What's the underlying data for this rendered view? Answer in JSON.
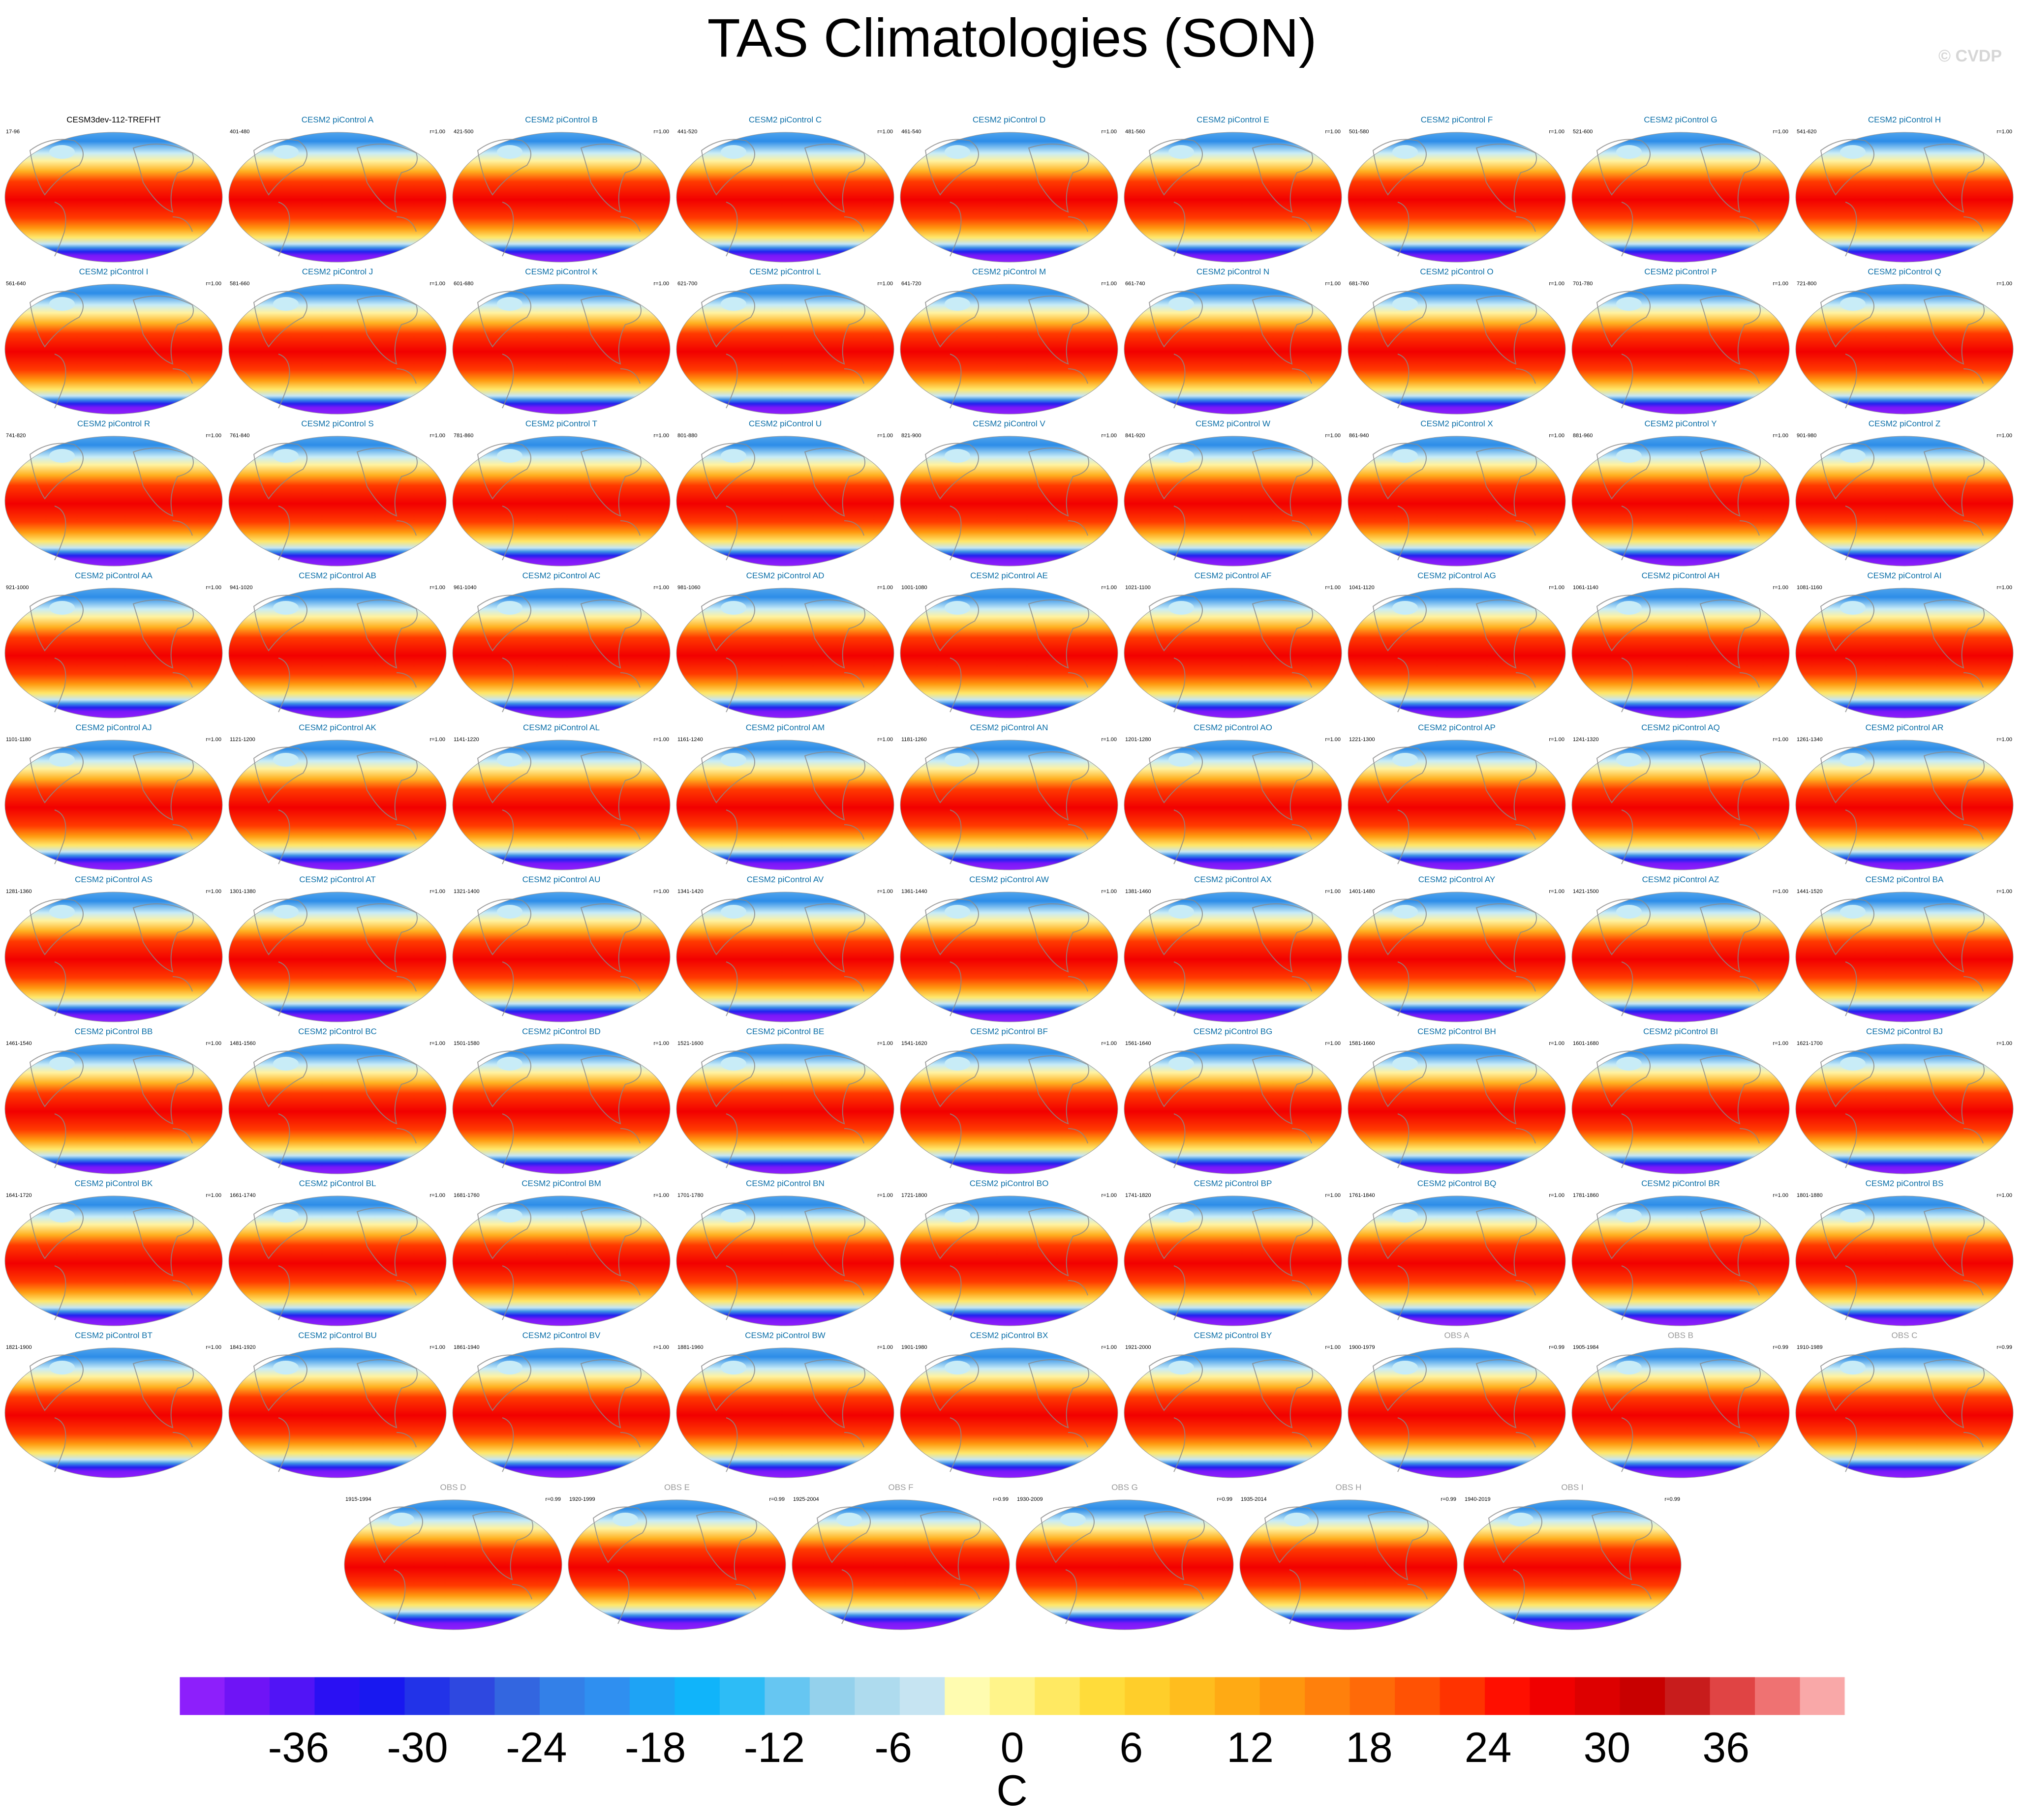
{
  "header": {
    "title": "TAS Climatologies (SON)",
    "copyright": "© CVDP"
  },
  "chart_data": {
    "type": "heatmap",
    "title": "TAS Climatologies (SON)",
    "variable": "TAS (surface air temperature), SON season",
    "units": "C",
    "projection": "global map (Robinson-like), repeated small multiples",
    "panels": [
      {
        "name": "CESM3dev-112-TREFHT",
        "years": "17-96",
        "r": ""
      },
      {
        "name": "CESM2 piControl A",
        "years": "401-480",
        "r": "r=1.00"
      },
      {
        "name": "CESM2 piControl B",
        "years": "421-500",
        "r": "r=1.00"
      },
      {
        "name": "CESM2 piControl C",
        "years": "441-520",
        "r": "r=1.00"
      },
      {
        "name": "CESM2 piControl D",
        "years": "461-540",
        "r": "r=1.00"
      },
      {
        "name": "CESM2 piControl E",
        "years": "481-560",
        "r": "r=1.00"
      },
      {
        "name": "CESM2 piControl F",
        "years": "501-580",
        "r": "r=1.00"
      },
      {
        "name": "CESM2 piControl G",
        "years": "521-600",
        "r": "r=1.00"
      },
      {
        "name": "CESM2 piControl H",
        "years": "541-620",
        "r": "r=1.00"
      },
      {
        "name": "CESM2 piControl I",
        "years": "561-640",
        "r": "r=1.00"
      },
      {
        "name": "CESM2 piControl J",
        "years": "581-660",
        "r": "r=1.00"
      },
      {
        "name": "CESM2 piControl K",
        "years": "601-680",
        "r": "r=1.00"
      },
      {
        "name": "CESM2 piControl L",
        "years": "621-700",
        "r": "r=1.00"
      },
      {
        "name": "CESM2 piControl M",
        "years": "641-720",
        "r": "r=1.00"
      },
      {
        "name": "CESM2 piControl N",
        "years": "661-740",
        "r": "r=1.00"
      },
      {
        "name": "CESM2 piControl O",
        "years": "681-760",
        "r": "r=1.00"
      },
      {
        "name": "CESM2 piControl P",
        "years": "701-780",
        "r": "r=1.00"
      },
      {
        "name": "CESM2 piControl Q",
        "years": "721-800",
        "r": "r=1.00"
      },
      {
        "name": "CESM2 piControl R",
        "years": "741-820",
        "r": "r=1.00"
      },
      {
        "name": "CESM2 piControl S",
        "years": "761-840",
        "r": "r=1.00"
      },
      {
        "name": "CESM2 piControl T",
        "years": "781-860",
        "r": "r=1.00"
      },
      {
        "name": "CESM2 piControl U",
        "years": "801-880",
        "r": "r=1.00"
      },
      {
        "name": "CESM2 piControl V",
        "years": "821-900",
        "r": "r=1.00"
      },
      {
        "name": "CESM2 piControl W",
        "years": "841-920",
        "r": "r=1.00"
      },
      {
        "name": "CESM2 piControl X",
        "years": "861-940",
        "r": "r=1.00"
      },
      {
        "name": "CESM2 piControl Y",
        "years": "881-960",
        "r": "r=1.00"
      },
      {
        "name": "CESM2 piControl Z",
        "years": "901-980",
        "r": "r=1.00"
      },
      {
        "name": "CESM2 piControl AA",
        "years": "921-1000",
        "r": "r=1.00"
      },
      {
        "name": "CESM2 piControl AB",
        "years": "941-1020",
        "r": "r=1.00"
      },
      {
        "name": "CESM2 piControl AC",
        "years": "961-1040",
        "r": "r=1.00"
      },
      {
        "name": "CESM2 piControl AD",
        "years": "981-1060",
        "r": "r=1.00"
      },
      {
        "name": "CESM2 piControl AE",
        "years": "1001-1080",
        "r": "r=1.00"
      },
      {
        "name": "CESM2 piControl AF",
        "years": "1021-1100",
        "r": "r=1.00"
      },
      {
        "name": "CESM2 piControl AG",
        "years": "1041-1120",
        "r": "r=1.00"
      },
      {
        "name": "CESM2 piControl AH",
        "years": "1061-1140",
        "r": "r=1.00"
      },
      {
        "name": "CESM2 piControl AI",
        "years": "1081-1160",
        "r": "r=1.00"
      },
      {
        "name": "CESM2 piControl AJ",
        "years": "1101-1180",
        "r": "r=1.00"
      },
      {
        "name": "CESM2 piControl AK",
        "years": "1121-1200",
        "r": "r=1.00"
      },
      {
        "name": "CESM2 piControl AL",
        "years": "1141-1220",
        "r": "r=1.00"
      },
      {
        "name": "CESM2 piControl AM",
        "years": "1161-1240",
        "r": "r=1.00"
      },
      {
        "name": "CESM2 piControl AN",
        "years": "1181-1260",
        "r": "r=1.00"
      },
      {
        "name": "CESM2 piControl AO",
        "years": "1201-1280",
        "r": "r=1.00"
      },
      {
        "name": "CESM2 piControl AP",
        "years": "1221-1300",
        "r": "r=1.00"
      },
      {
        "name": "CESM2 piControl AQ",
        "years": "1241-1320",
        "r": "r=1.00"
      },
      {
        "name": "CESM2 piControl AR",
        "years": "1261-1340",
        "r": "r=1.00"
      },
      {
        "name": "CESM2 piControl AS",
        "years": "1281-1360",
        "r": "r=1.00"
      },
      {
        "name": "CESM2 piControl AT",
        "years": "1301-1380",
        "r": "r=1.00"
      },
      {
        "name": "CESM2 piControl AU",
        "years": "1321-1400",
        "r": "r=1.00"
      },
      {
        "name": "CESM2 piControl AV",
        "years": "1341-1420",
        "r": "r=1.00"
      },
      {
        "name": "CESM2 piControl AW",
        "years": "1361-1440",
        "r": "r=1.00"
      },
      {
        "name": "CESM2 piControl AX",
        "years": "1381-1460",
        "r": "r=1.00"
      },
      {
        "name": "CESM2 piControl AY",
        "years": "1401-1480",
        "r": "r=1.00"
      },
      {
        "name": "CESM2 piControl AZ",
        "years": "1421-1500",
        "r": "r=1.00"
      },
      {
        "name": "CESM2 piControl BA",
        "years": "1441-1520",
        "r": "r=1.00"
      },
      {
        "name": "CESM2 piControl BB",
        "years": "1461-1540",
        "r": "r=1.00"
      },
      {
        "name": "CESM2 piControl BC",
        "years": "1481-1560",
        "r": "r=1.00"
      },
      {
        "name": "CESM2 piControl BD",
        "years": "1501-1580",
        "r": "r=1.00"
      },
      {
        "name": "CESM2 piControl BE",
        "years": "1521-1600",
        "r": "r=1.00"
      },
      {
        "name": "CESM2 piControl BF",
        "years": "1541-1620",
        "r": "r=1.00"
      },
      {
        "name": "CESM2 piControl BG",
        "years": "1561-1640",
        "r": "r=1.00"
      },
      {
        "name": "CESM2 piControl BH",
        "years": "1581-1660",
        "r": "r=1.00"
      },
      {
        "name": "CESM2 piControl BI",
        "years": "1601-1680",
        "r": "r=1.00"
      },
      {
        "name": "CESM2 piControl BJ",
        "years": "1621-1700",
        "r": "r=1.00"
      },
      {
        "name": "CESM2 piControl BK",
        "years": "1641-1720",
        "r": "r=1.00"
      },
      {
        "name": "CESM2 piControl BL",
        "years": "1661-1740",
        "r": "r=1.00"
      },
      {
        "name": "CESM2 piControl BM",
        "years": "1681-1760",
        "r": "r=1.00"
      },
      {
        "name": "CESM2 piControl BN",
        "years": "1701-1780",
        "r": "r=1.00"
      },
      {
        "name": "CESM2 piControl BO",
        "years": "1721-1800",
        "r": "r=1.00"
      },
      {
        "name": "CESM2 piControl BP",
        "years": "1741-1820",
        "r": "r=1.00"
      },
      {
        "name": "CESM2 piControl BQ",
        "years": "1761-1840",
        "r": "r=1.00"
      },
      {
        "name": "CESM2 piControl BR",
        "years": "1781-1860",
        "r": "r=1.00"
      },
      {
        "name": "CESM2 piControl BS",
        "years": "1801-1880",
        "r": "r=1.00"
      },
      {
        "name": "CESM2 piControl BT",
        "years": "1821-1900",
        "r": "r=1.00"
      },
      {
        "name": "CESM2 piControl BU",
        "years": "1841-1920",
        "r": "r=1.00"
      },
      {
        "name": "CESM2 piControl BV",
        "years": "1861-1940",
        "r": "r=1.00"
      },
      {
        "name": "CESM2 piControl BW",
        "years": "1881-1960",
        "r": "r=1.00"
      },
      {
        "name": "CESM2 piControl BX",
        "years": "1901-1980",
        "r": "r=1.00"
      },
      {
        "name": "CESM2 piControl BY",
        "years": "1921-2000",
        "r": "r=1.00"
      },
      {
        "name": "OBS A",
        "years": "1900-1979",
        "r": "r=0.99"
      },
      {
        "name": "OBS B",
        "years": "1905-1984",
        "r": "r=0.99"
      },
      {
        "name": "OBS C",
        "years": "1910-1989",
        "r": "r=0.99"
      },
      {
        "name": "OBS D",
        "years": "1915-1994",
        "r": "r=0.99"
      },
      {
        "name": "OBS E",
        "years": "1920-1999",
        "r": "r=0.99"
      },
      {
        "name": "OBS F",
        "years": "1925-2004",
        "r": "r=0.99"
      },
      {
        "name": "OBS G",
        "years": "1930-2009",
        "r": "r=0.99"
      },
      {
        "name": "OBS H",
        "years": "1935-2014",
        "r": "r=0.99"
      },
      {
        "name": "OBS I",
        "years": "1940-2019",
        "r": "r=0.99"
      }
    ],
    "colorbar": {
      "label": "C",
      "min": -42,
      "max": 42,
      "step": 2,
      "tick_values": [
        -36,
        -30,
        -24,
        -18,
        -12,
        -6,
        0,
        6,
        12,
        18,
        24,
        30,
        36
      ],
      "tick_labels": [
        "-36",
        "-30",
        "-24",
        "-18",
        "-12",
        "-6",
        "0",
        "6",
        "12",
        "18",
        "24",
        "30",
        "36"
      ],
      "colors": [
        "#8d1ffb",
        "#6f14f6",
        "#5114f6",
        "#2a10f3",
        "#1818f0",
        "#2233e8",
        "#2e48e0",
        "#3366e0",
        "#3380e8",
        "#2f8ff0",
        "#1ea3f5",
        "#10b4fa",
        "#2dbcf6",
        "#66c6f2",
        "#94d1ec",
        "#aedbee",
        "#c6e4f2",
        "#fffcb0",
        "#fff48a",
        "#ffe962",
        "#ffdc3a",
        "#ffce2a",
        "#ffbd1e",
        "#ffaa14",
        "#ff960e",
        "#ff800c",
        "#ff6a08",
        "#ff5204",
        "#ff3300",
        "#ff0f00",
        "#f00000",
        "#dd0000",
        "#c80000",
        "#c81c1c",
        "#e04444",
        "#ef7272",
        "#f9a8a8"
      ]
    }
  }
}
